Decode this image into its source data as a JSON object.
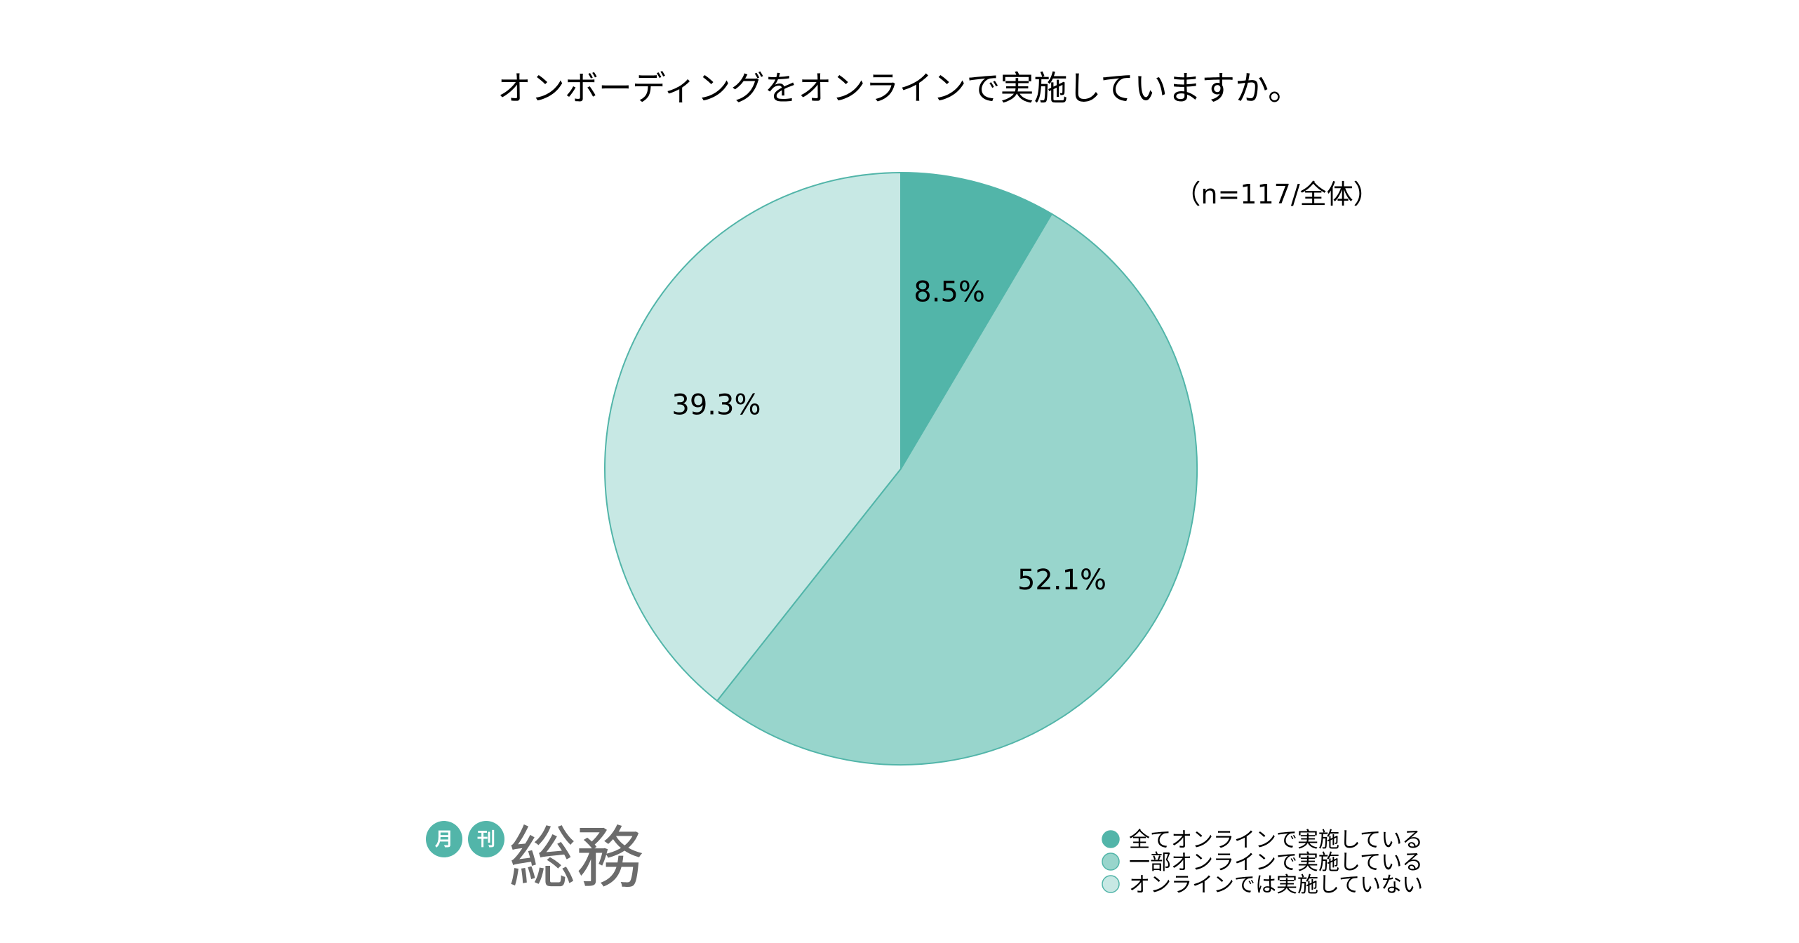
{
  "chart_data": {
    "type": "pie",
    "title": "オンボーディングをオンラインで実施していますか。",
    "note": "（n=117/全体）",
    "slices": [
      {
        "label": "全てオンラインで実施している",
        "value": 8.5,
        "display": "8.5%",
        "color": "#52b5a9"
      },
      {
        "label": "一部オンラインで実施している",
        "value": 52.1,
        "display": "52.1%",
        "color": "#98d5cc"
      },
      {
        "label": "オンラインでは実施していない",
        "value": 39.3,
        "display": "39.3%",
        "color": "#c7e8e4"
      }
    ],
    "legend_placement": "bottom-right",
    "edge_color": "#52b5a9"
  },
  "logo": {
    "badge1": "月",
    "badge2": "刊",
    "name": "総務",
    "color": "#52b5a9"
  }
}
